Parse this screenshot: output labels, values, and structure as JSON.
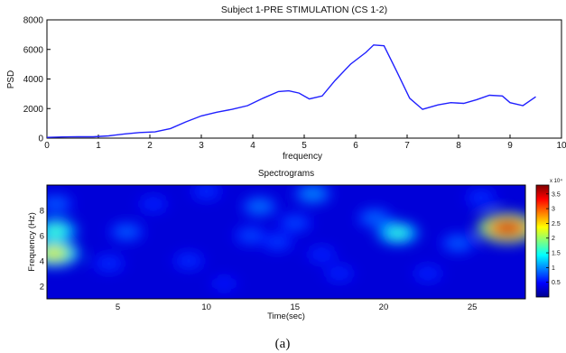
{
  "figure": {
    "caption": "(a)"
  },
  "chart_data": [
    {
      "type": "line",
      "title": "Subject 1-PRE STIMULATION (CS 1-2)",
      "xlabel": "frequency",
      "ylabel": "PSD",
      "xlim": [
        0,
        10
      ],
      "ylim": [
        0,
        8000
      ],
      "xticks": [
        "0",
        "1",
        "2",
        "3",
        "4",
        "5",
        "6",
        "7",
        "8",
        "9",
        "10"
      ],
      "yticks": [
        "0",
        "2000",
        "4000",
        "6000",
        "8000"
      ],
      "grid": false,
      "line_color": "#2020ff",
      "series": [
        {
          "x": [
            0,
            0.3,
            0.6,
            0.9,
            1.2,
            1.5,
            1.8,
            2.1,
            2.4,
            2.7,
            3.0,
            3.3,
            3.6,
            3.9,
            4.2,
            4.5,
            4.7,
            4.9,
            5.1,
            5.35,
            5.6,
            5.9,
            6.2,
            6.35,
            6.55,
            6.8,
            7.05,
            7.3,
            7.6,
            7.85,
            8.1,
            8.35,
            8.6,
            8.85,
            9.0,
            9.25,
            9.5
          ],
          "y": [
            50,
            80,
            100,
            90,
            150,
            280,
            380,
            420,
            650,
            1100,
            1500,
            1750,
            1950,
            2200,
            2700,
            3150,
            3200,
            3050,
            2650,
            2850,
            3900,
            5000,
            5800,
            6300,
            6250,
            4500,
            2700,
            1950,
            2250,
            2400,
            2350,
            2600,
            2900,
            2850,
            2400,
            2200,
            2800
          ]
        }
      ]
    },
    {
      "type": "heatmap",
      "title": "Spectrograms",
      "xlabel": "Time(sec)",
      "ylabel": "Frequency (Hz)",
      "xlim": [
        1,
        28
      ],
      "ylim": [
        1,
        10
      ],
      "xticks": [
        "5",
        "10",
        "15",
        "20",
        "25"
      ],
      "yticks": [
        "2",
        "4",
        "6",
        "8"
      ],
      "colormap": "jet",
      "colorbar": {
        "range": [
          0,
          38000
        ],
        "exponent_label": "x 10⁴",
        "ticks": [
          "0.5",
          "1",
          "1.5",
          "2",
          "2.5",
          "3",
          "3.5"
        ]
      },
      "hotspots": [
        {
          "t": 27.0,
          "f": 6.6,
          "value": 36000
        },
        {
          "t": 1.4,
          "f": 4.6,
          "value": 25000
        },
        {
          "t": 1.5,
          "f": 6.4,
          "value": 18000
        },
        {
          "t": 20.8,
          "f": 6.2,
          "value": 17000
        },
        {
          "t": 1.5,
          "f": 8.5,
          "value": 10000
        },
        {
          "t": 16.0,
          "f": 9.3,
          "value": 12000
        },
        {
          "t": 13.0,
          "f": 8.3,
          "value": 11000
        },
        {
          "t": 19.5,
          "f": 7.4,
          "value": 10500
        },
        {
          "t": 24.2,
          "f": 5.4,
          "value": 10000
        },
        {
          "t": 5.5,
          "f": 6.3,
          "value": 10000
        },
        {
          "t": 12.5,
          "f": 6.0,
          "value": 9000
        },
        {
          "t": 15.0,
          "f": 7.0,
          "value": 9000
        },
        {
          "t": 14.0,
          "f": 5.5,
          "value": 8500
        },
        {
          "t": 4.5,
          "f": 3.8,
          "value": 8000
        },
        {
          "t": 9.0,
          "f": 4.0,
          "value": 8000
        },
        {
          "t": 10.0,
          "f": 9.5,
          "value": 8000
        },
        {
          "t": 22.5,
          "f": 3.0,
          "value": 7500
        },
        {
          "t": 17.5,
          "f": 3.0,
          "value": 7500
        },
        {
          "t": 11.0,
          "f": 2.2,
          "value": 7000
        },
        {
          "t": 7.0,
          "f": 8.5,
          "value": 7500
        },
        {
          "t": 25.5,
          "f": 9.0,
          "value": 8000
        },
        {
          "t": 16.5,
          "f": 4.5,
          "value": 7500
        }
      ]
    }
  ]
}
